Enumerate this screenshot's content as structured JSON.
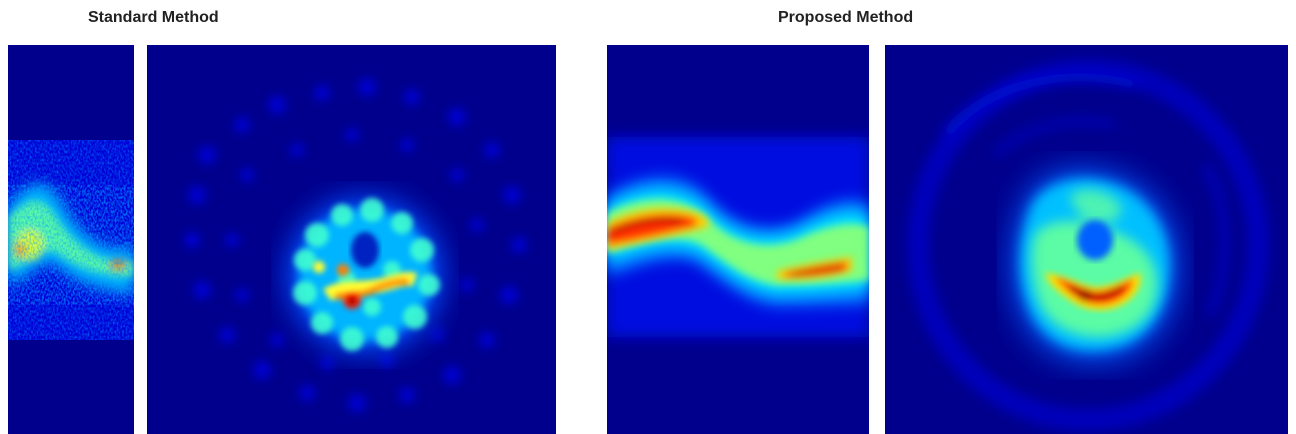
{
  "headings": {
    "standard": "Standard Method",
    "proposed": "Proposed Method"
  },
  "colormap": {
    "background": "#00008c",
    "low": "#0000ff",
    "mid_low": "#00a0ff",
    "mid": "#40ffc0",
    "mid_high": "#ffff00",
    "high": "#ff3000",
    "peak": "#a00000"
  },
  "panels": [
    {
      "group": "standard",
      "view": "time-profile",
      "appearance": "noisy"
    },
    {
      "group": "standard",
      "view": "cross-section",
      "appearance": "noisy"
    },
    {
      "group": "proposed",
      "view": "time-profile",
      "appearance": "smooth"
    },
    {
      "group": "proposed",
      "view": "cross-section",
      "appearance": "smooth"
    }
  ]
}
